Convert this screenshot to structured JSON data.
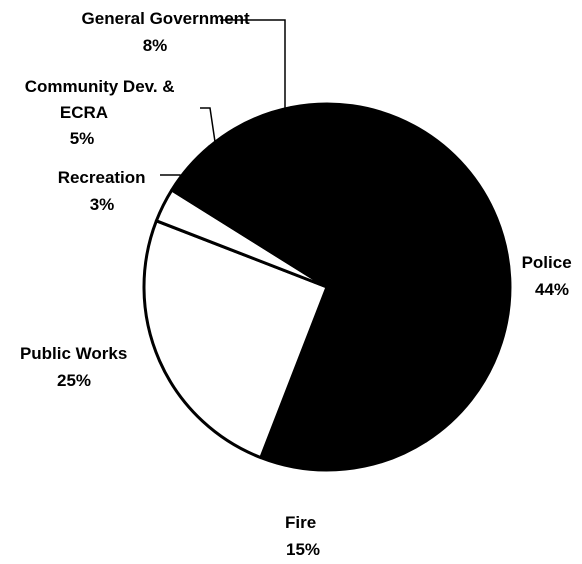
{
  "chart_data": {
    "type": "pie",
    "start_angle_deg": 130,
    "direction": "clockwise",
    "slices": [
      {
        "label_lines": [
          "General Government"
        ],
        "value_text": "8%",
        "value": 8,
        "fill": "#000000"
      },
      {
        "label_lines": [
          "Police"
        ],
        "value_text": "44%",
        "value": 44,
        "fill": "#000000"
      },
      {
        "label_lines": [
          "Fire"
        ],
        "value_text": "15%",
        "value": 15,
        "fill": "#000000"
      },
      {
        "label_lines": [
          "Public Works"
        ],
        "value_text": "25%",
        "value": 25,
        "fill": "#ffffff"
      },
      {
        "label_lines": [
          "Recreation"
        ],
        "value_text": "3%",
        "value": 3,
        "fill": "#ffffff"
      },
      {
        "label_lines": [
          "Community Dev. &",
          "ECRA"
        ],
        "value_text": "5%",
        "value": 5,
        "fill": "#000000"
      }
    ]
  }
}
